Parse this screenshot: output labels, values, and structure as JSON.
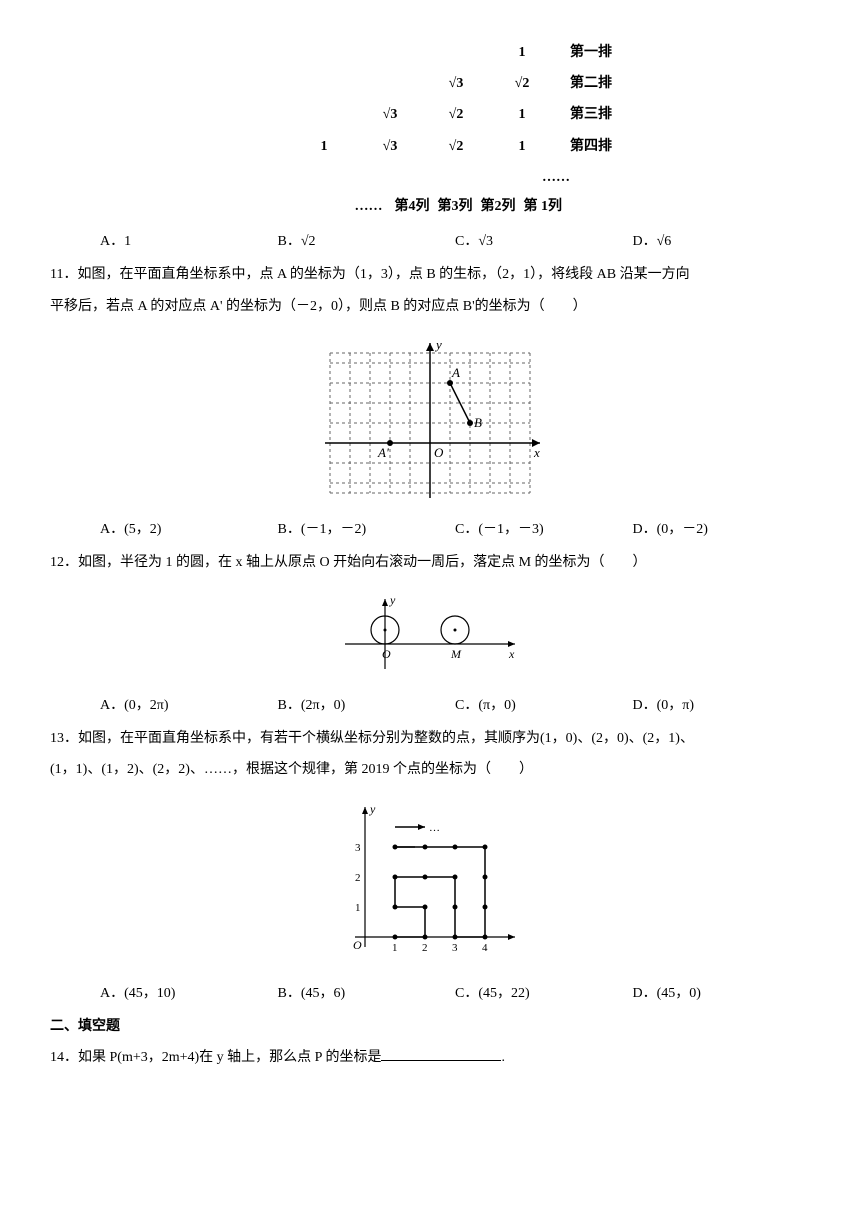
{
  "triangle": {
    "rows": [
      {
        "cells": [
          "",
          "",
          "",
          "1"
        ],
        "label": "第一排"
      },
      {
        "cells": [
          "",
          "",
          "√3",
          "√2"
        ],
        "label": "第二排"
      },
      {
        "cells": [
          "",
          "√3",
          "√2",
          "1"
        ],
        "label": "第三排"
      },
      {
        "cells": [
          "1",
          "√3",
          "√2",
          "1"
        ],
        "label": "第四排"
      }
    ],
    "cols_prefix": "……",
    "cols": [
      "第4列",
      "第3列",
      "第2列",
      "第 1列"
    ],
    "dots_right": "……"
  },
  "q10_options": {
    "a": "A．1",
    "b": "B．√2",
    "c": "C．√3",
    "d": "D．√6"
  },
  "q11": {
    "text1": "11．如图，在平面直角坐标系中，点 A 的坐标为（1，3），点 B 的生标，（2，1），将线段 AB 沿某一方向",
    "text2": "平移后，若点 A 的对应点 A' 的坐标为（－2，0），则点 B 的对应点 B'的坐标为（　　）",
    "options": {
      "a": "A．(5，2)",
      "b": "B．(－1，－2)",
      "c": "C．(－1，－3)",
      "d": "D．(0，－2)"
    }
  },
  "q12": {
    "text": "12．如图，半径为 1 的圆，在 x 轴上从原点 O 开始向右滚动一周后，落定点 M 的坐标为（　　）",
    "options": {
      "a": "A．(0，2π)",
      "b": "B．(2π，0)",
      "c": "C．(π，0)",
      "d": "D．(0，π)"
    }
  },
  "q13": {
    "text1": "13．如图，在平面直角坐标系中，有若干个横纵坐标分别为整数的点，其顺序为(1，0)、(2，0)、(2，1)、",
    "text2": "(1，1)、(1，2)、(2，2)、……，根据这个规律，第 2019 个点的坐标为（　　）",
    "options": {
      "a": "A．(45，10)",
      "b": "B．(45，6)",
      "c": "C．(45，22)",
      "d": "D．(45，0)"
    }
  },
  "section2": "二、填空题",
  "q14": {
    "text_before": "14．如果 P(m+3，2m+4)在 y 轴上，那么点 P 的坐标是",
    "text_after": "."
  },
  "fig11": {
    "A_label": "A",
    "B_label": "B",
    "Aprime_label": "A'",
    "O_label": "O",
    "x_label": "x",
    "y_label": "y",
    "grid_color": "#888",
    "axis_color": "#000",
    "A": [
      1,
      3
    ],
    "B": [
      2,
      1
    ],
    "Aprime": [
      -2,
      0
    ]
  },
  "fig12": {
    "O_label": "O",
    "M_label": "M",
    "x_label": "x",
    "y_label": "y",
    "circle_r": 14,
    "M_x": 70
  },
  "fig13": {
    "O_label": "O",
    "y_label": "y",
    "xticks": [
      "1",
      "2",
      "3",
      "4"
    ],
    "yticks": [
      "1",
      "2",
      "3"
    ],
    "path_color": "#000",
    "points": [
      [
        1,
        0
      ],
      [
        2,
        0
      ],
      [
        2,
        1
      ],
      [
        1,
        1
      ],
      [
        1,
        2
      ],
      [
        2,
        2
      ],
      [
        3,
        2
      ],
      [
        3,
        1
      ],
      [
        3,
        0
      ],
      [
        4,
        0
      ],
      [
        4,
        1
      ],
      [
        4,
        2
      ],
      [
        4,
        3
      ],
      [
        3,
        3
      ],
      [
        2,
        3
      ],
      [
        1,
        3
      ]
    ]
  }
}
